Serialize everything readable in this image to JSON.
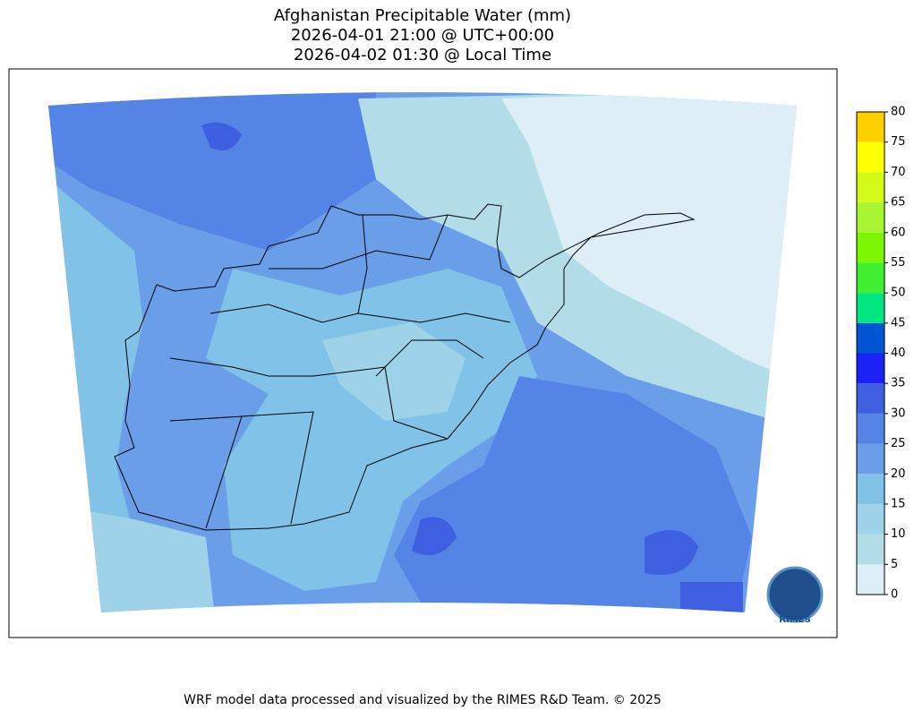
{
  "title": [
    "Afghanistan Precipitable Water (mm)",
    "2026-04-01 21:00 @ UTC+00:00",
    "2026-04-02 01:30 @ Local Time"
  ],
  "colorbar": {
    "lim": [
      0,
      80
    ],
    "ticks": [
      0,
      5,
      10,
      15,
      20,
      25,
      30,
      35,
      40,
      45,
      50,
      55,
      60,
      65,
      70,
      75,
      80
    ],
    "colors": [
      "#ddeef6",
      "#b2dde8",
      "#9dd2e9",
      "#80c2e8",
      "#6a9ee8",
      "#5484e6",
      "#3d5fe0",
      "#1a22f5",
      "#0055d4",
      "#00e681",
      "#3ef030",
      "#7af700",
      "#a6f530",
      "#d4fa1a",
      "#ffff00",
      "#ffd000"
    ]
  },
  "logo": "RIMES",
  "footer": "WRF model data processed and visualized by the RIMES R&D Team. © 2025"
}
